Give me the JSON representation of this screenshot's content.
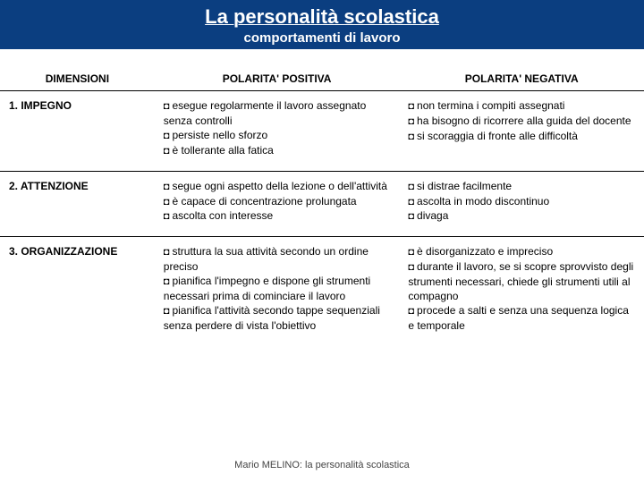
{
  "banner": {
    "title": "La personalità scolastica",
    "subtitle": "comportamenti di lavoro"
  },
  "headers": [
    "DIMENSIONI",
    "POLARITA' POSITIVA",
    "POLARITA' NEGATIVA"
  ],
  "rows": [
    {
      "dim": "1. IMPEGNO",
      "pos": [
        "esegue regolarmente il lavoro assegnato senza controlli",
        "persiste nello sforzo",
        "è tollerante alla fatica"
      ],
      "neg": [
        "non termina i compiti assegnati",
        "ha bisogno di ricorrere alla guida del docente",
        "si scoraggia di fronte alle difficoltà"
      ]
    },
    {
      "dim": "2. ATTENZIONE",
      "pos": [
        "segue ogni aspetto della lezione o dell'attività",
        "è capace di concentrazione prolungata",
        "ascolta con interesse"
      ],
      "neg": [
        "si distrae facilmente",
        "ascolta in modo discontinuo",
        "divaga"
      ]
    },
    {
      "dim": "3. ORGANIZZAZIONE",
      "pos": [
        "struttura la sua attività secondo un ordine preciso",
        "pianifica l'impegno e dispone gli strumenti necessari prima di cominciare il lavoro",
        "pianifica l'attività secondo tappe sequenziali senza perdere di vista l'obiettivo"
      ],
      "neg": [
        "è disorganizzato e impreciso",
        "durante il lavoro, se si scopre sprovvisto degli strumenti necessari, chiede gli strumenti utili al compagno",
        "procede a salti e senza una sequenza logica e temporale"
      ]
    }
  ],
  "footer": "Mario MELINO: la personalità scolastica"
}
